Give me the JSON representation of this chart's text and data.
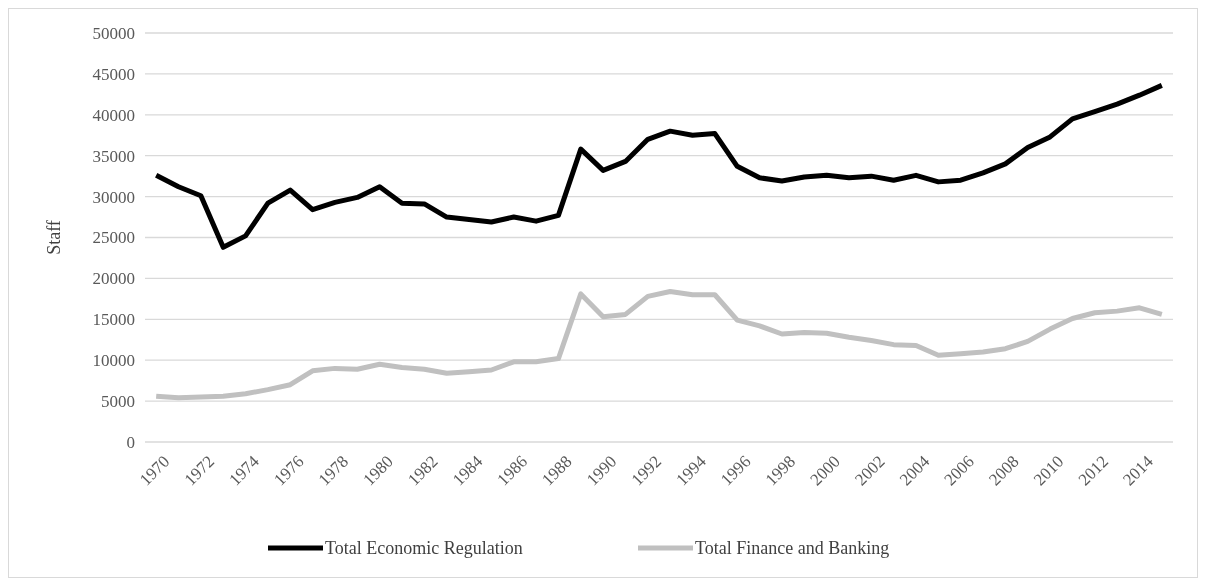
{
  "chart_data": {
    "type": "line",
    "ylabel": "Staff",
    "categories": [
      "1970",
      null,
      "1972",
      null,
      "1974",
      null,
      "1976",
      null,
      "1978",
      null,
      "1980",
      null,
      "1982",
      null,
      "1984",
      null,
      "1986",
      null,
      "1988",
      null,
      "1990",
      null,
      "1992",
      null,
      "1994",
      null,
      "1996",
      null,
      "1998",
      null,
      "2000",
      null,
      "2002",
      null,
      "2004",
      null,
      "2006",
      null,
      "2008",
      null,
      "2010",
      null,
      "2012",
      null,
      "2014",
      null
    ],
    "series": [
      {
        "name": "Total Economic Regulation",
        "color": "#000000",
        "values": [
          32600,
          31200,
          30100,
          23800,
          25200,
          29200,
          30800,
          28400,
          29300,
          29900,
          31200,
          29200,
          29100,
          27500,
          27200,
          26900,
          27500,
          27000,
          27700,
          35800,
          33200,
          34300,
          37000,
          38000,
          37500,
          37700,
          33700,
          32300,
          31900,
          32400,
          32600,
          32300,
          32500,
          32000,
          32600,
          31800,
          32000,
          32900,
          34000,
          36000,
          37300,
          39500,
          40400,
          41300,
          42400,
          43600
        ]
      },
      {
        "name": "Total Finance and Banking",
        "color": "#c0c0c0",
        "values": [
          5600,
          5400,
          5500,
          5600,
          5900,
          6400,
          7000,
          8700,
          9000,
          8900,
          9500,
          9100,
          8900,
          8400,
          8600,
          8800,
          9800,
          9800,
          10200,
          18100,
          15300,
          15600,
          17800,
          18400,
          18000,
          18000,
          14900,
          14200,
          13200,
          13400,
          13300,
          12800,
          12400,
          11900,
          11800,
          10600,
          10800,
          11000,
          11400,
          12300,
          13800,
          15100,
          15800,
          16000,
          16400,
          15600
        ]
      }
    ],
    "ylim": [
      0,
      50000
    ],
    "yticks": [
      0,
      5000,
      10000,
      15000,
      20000,
      25000,
      30000,
      35000,
      40000,
      45000,
      50000
    ],
    "grid": "y",
    "legend": "bottom",
    "marker": "none",
    "line_style": "solid"
  }
}
